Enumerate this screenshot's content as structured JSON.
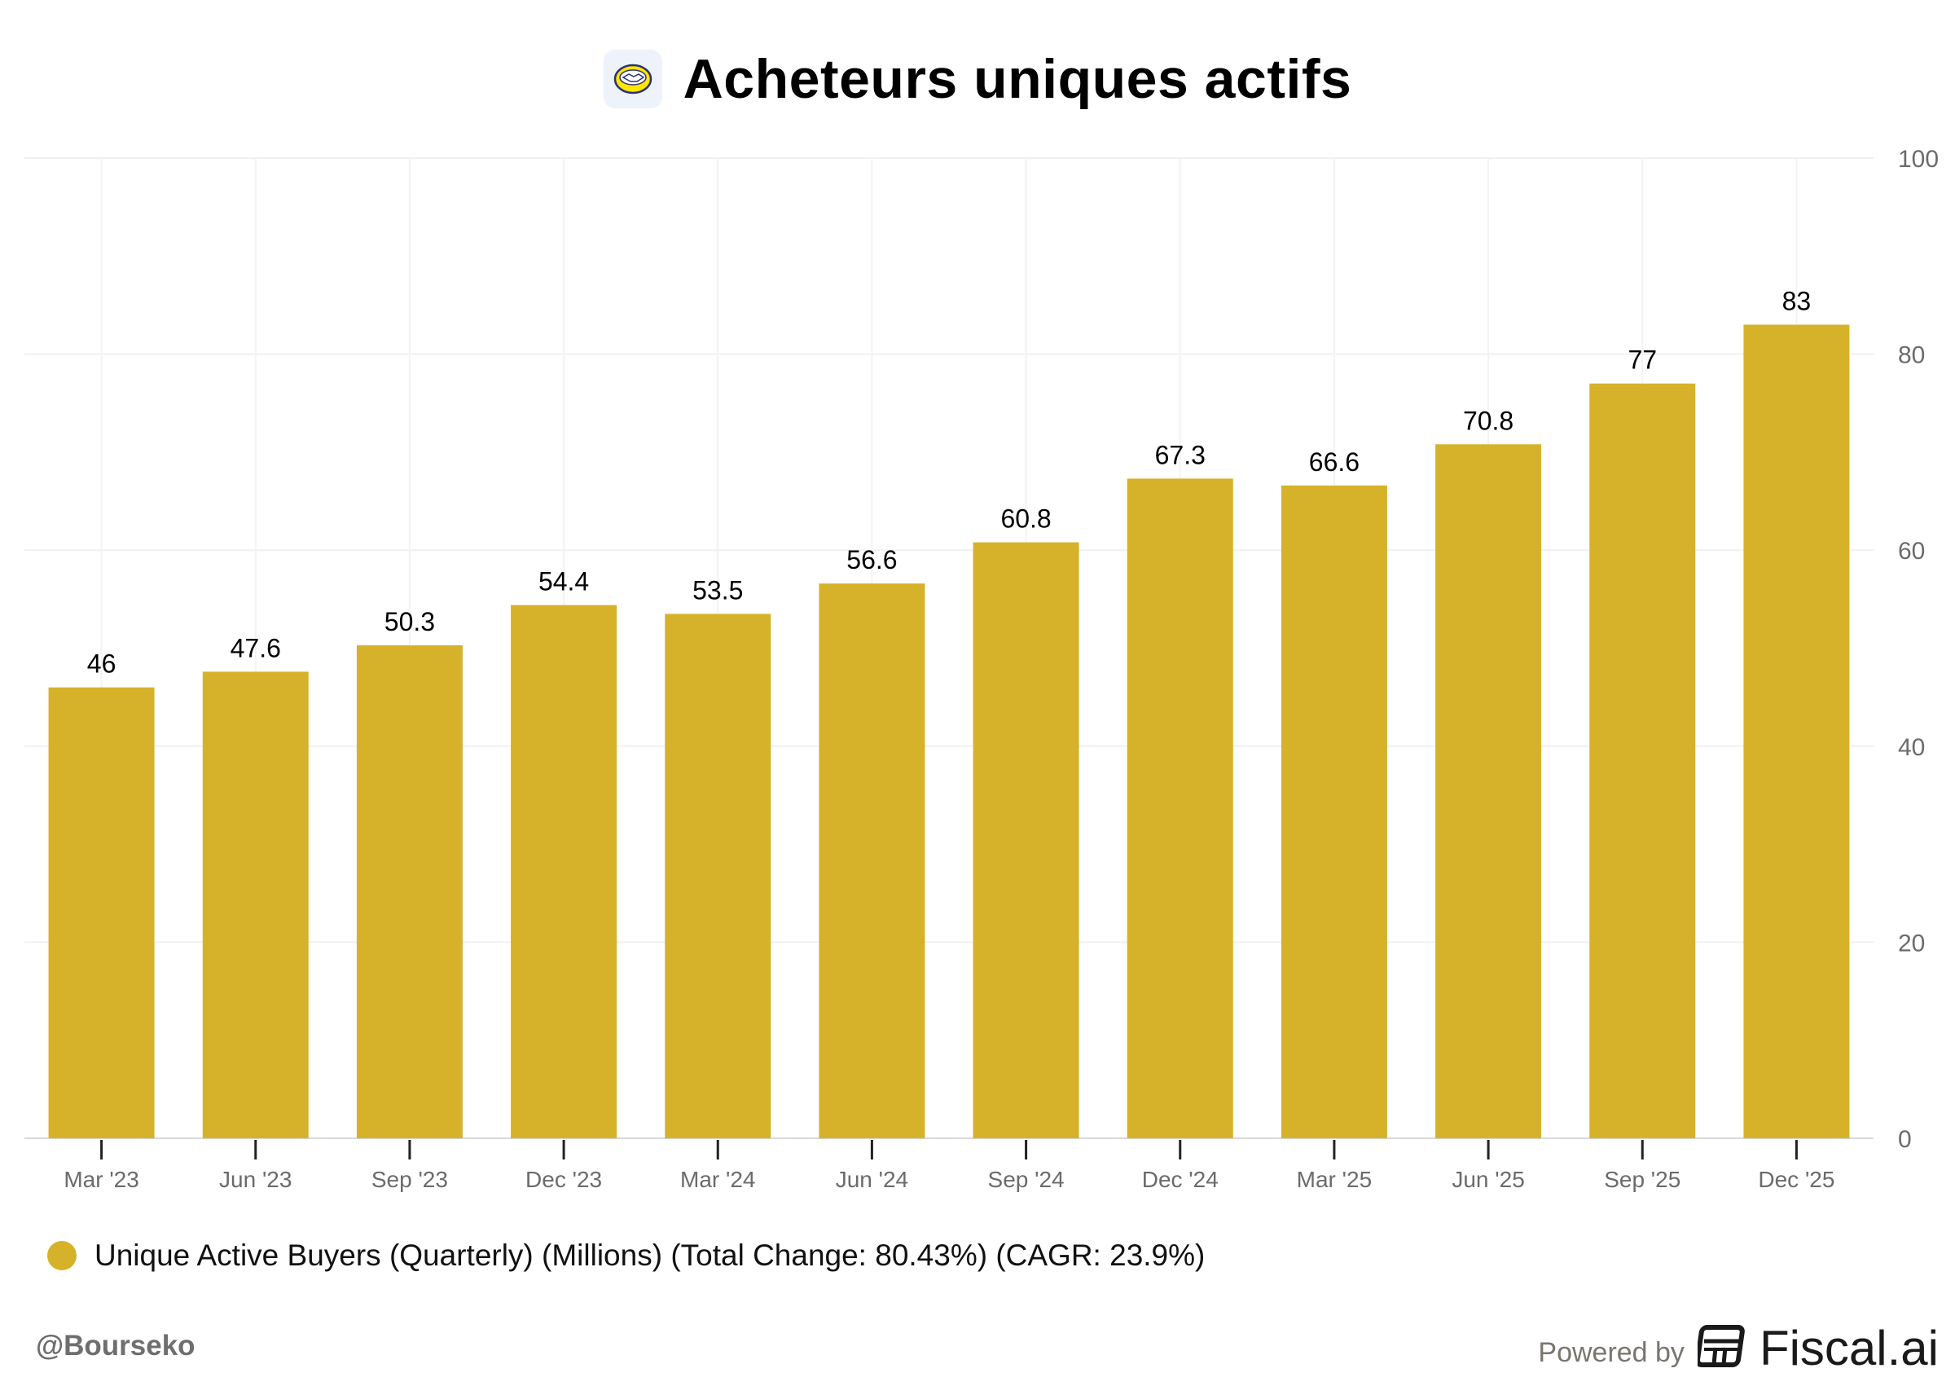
{
  "header": {
    "title": "Acheteurs uniques actifs",
    "logo_icon": "handshake-logo-icon"
  },
  "chart_data": {
    "type": "bar",
    "title": "Acheteurs uniques actifs",
    "categories": [
      "Mar '23",
      "Jun '23",
      "Sep '23",
      "Dec '23",
      "Mar '24",
      "Jun '24",
      "Sep '24",
      "Dec '24",
      "Mar '25",
      "Jun '25",
      "Sep '25",
      "Dec '25"
    ],
    "series": [
      {
        "name": "Unique Active Buyers (Quarterly) (Millions) (Total Change: 80.43%) (CAGR: 23.9%)",
        "values": [
          46,
          47.6,
          50.3,
          54.4,
          53.5,
          56.6,
          60.8,
          67.3,
          66.6,
          70.8,
          77,
          83
        ],
        "color": "#d6b22a"
      }
    ],
    "ylim": [
      0,
      100
    ],
    "yticks": [
      0,
      20,
      40,
      60,
      80,
      100
    ],
    "y_axis_side": "right",
    "grid": true,
    "legend_position": "bottom-left"
  },
  "footer": {
    "handle": "@Bourseko",
    "powered_by": "Powered by",
    "brand": "Fiscal.ai"
  }
}
